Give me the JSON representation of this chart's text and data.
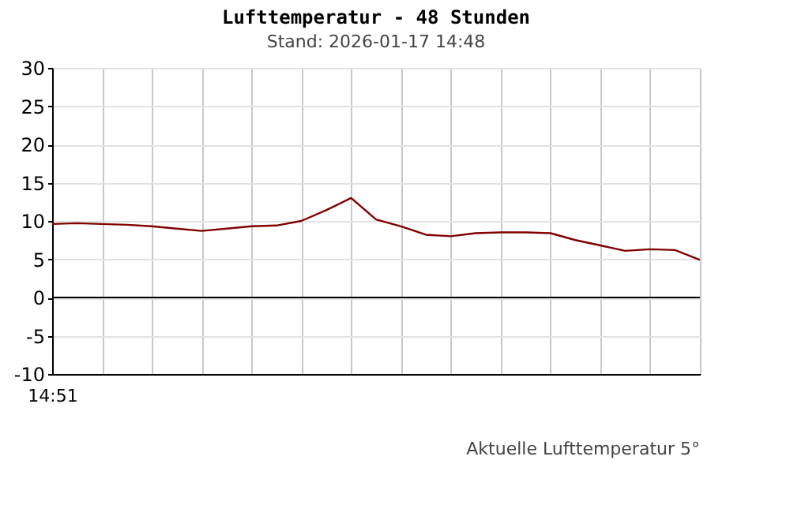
{
  "chart_data": {
    "type": "line",
    "title": "Lufttemperatur - 48 Stunden",
    "subtitle": "Stand: 2026-01-17 14:48",
    "categories": [
      "14:51",
      null,
      null,
      null,
      null,
      null,
      null,
      null,
      null,
      null,
      null,
      null,
      null,
      null,
      null,
      null,
      null,
      null,
      null,
      null,
      null,
      null,
      null,
      null,
      null,
      null,
      null
    ],
    "series": [
      {
        "color": "#800000",
        "values": [
          9.6,
          9.7,
          9.6,
          9.5,
          9.3,
          9.0,
          8.7,
          9.0,
          9.3,
          9.4,
          10.0,
          11.4,
          13.0,
          10.2,
          9.3,
          8.2,
          8.0,
          8.4,
          8.5,
          8.5,
          8.4,
          7.5,
          6.8,
          6.1,
          6.3,
          6.2,
          4.9
        ]
      }
    ],
    "ylim": [
      -10,
      30
    ],
    "yticks": [
      -10,
      -5,
      0,
      5,
      10,
      15,
      20,
      25,
      30
    ],
    "ref_lines": [
      {
        "axis": "y",
        "value": 0,
        "color": "#000000"
      }
    ],
    "annotations": [
      "Aktuelle Lufttemperatur 5°"
    ],
    "grid": true,
    "legend": false,
    "marker": "none",
    "line_style": "solid"
  }
}
